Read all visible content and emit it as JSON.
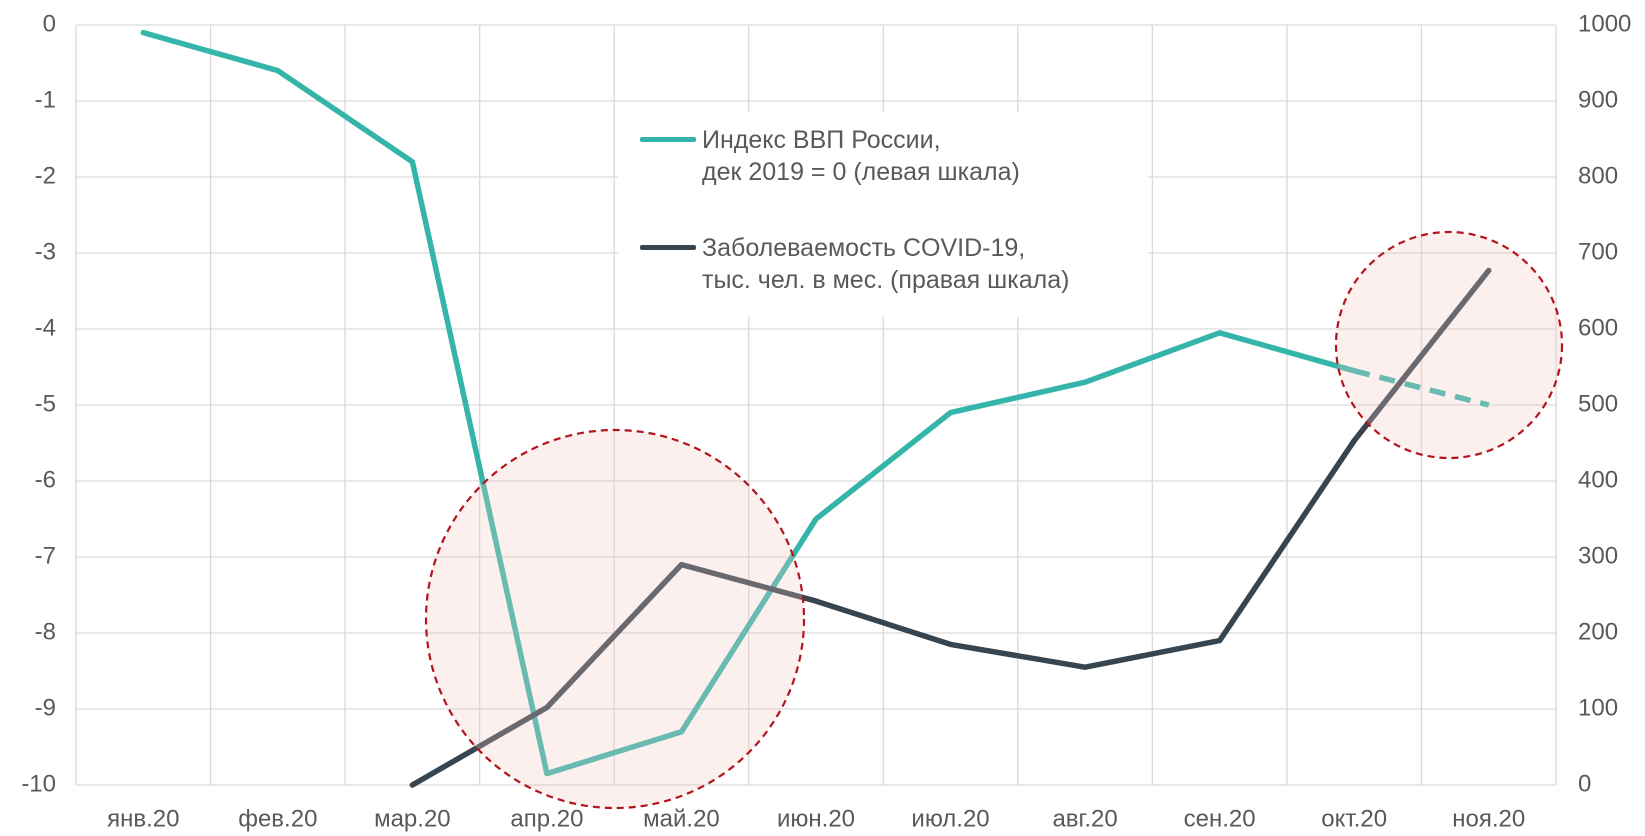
{
  "chart_data": {
    "type": "line",
    "categories": [
      "янв.20",
      "фев.20",
      "мар.20",
      "апр.20",
      "май.20",
      "июн.20",
      "июл.20",
      "авг.20",
      "сен.20",
      "окт.20",
      "ноя.20"
    ],
    "series": [
      {
        "name": "Индекс ВВП России,\nдек 2019 = 0 (левая шкала)",
        "color": "#35b5a9",
        "axis": "y",
        "dashed_from": 9,
        "values": [
          -0.1,
          -0.6,
          -1.8,
          -9.85,
          -9.3,
          -6.5,
          -5.1,
          -4.7,
          -4.05,
          -4.55,
          -5.0
        ]
      },
      {
        "name": "Заболеваемость COVID-19,\nтыс. чел. в мес. (правая шкала)",
        "color": "#36454f",
        "axis": "y2",
        "values": [
          null,
          null,
          0,
          102,
          290,
          242,
          185,
          155,
          190,
          453,
          677
        ]
      }
    ],
    "ylim": [
      -10,
      0
    ],
    "yticks": [
      -10,
      -9,
      -8,
      -7,
      -6,
      -5,
      -4,
      -3,
      -2,
      -1,
      0
    ],
    "y2lim": [
      0,
      1000
    ],
    "y2ticks": [
      0,
      100,
      200,
      300,
      400,
      500,
      600,
      700,
      800,
      900,
      1000
    ],
    "grid": true
  }
}
